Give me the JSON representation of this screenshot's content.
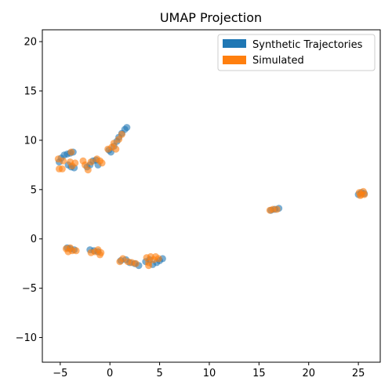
{
  "chart_data": {
    "type": "scatter",
    "title": "UMAP Projection",
    "xlabel": "",
    "ylabel": "",
    "xlim": [
      -6.8,
      27.2
    ],
    "ylim": [
      -12.5,
      21.2
    ],
    "xticks": [
      -5,
      0,
      5,
      10,
      15,
      20,
      25
    ],
    "yticks": [
      -10,
      -5,
      0,
      5,
      10,
      15,
      20
    ],
    "xtick_labels": [
      "−5",
      "0",
      "5",
      "10",
      "15",
      "20",
      "25"
    ],
    "ytick_labels": [
      "−10",
      "−5",
      "0",
      "5",
      "10",
      "15",
      "20"
    ],
    "grid": false,
    "legend_position": "top-right",
    "series": [
      {
        "name": "Synthetic Trajectories",
        "color": "#1f77b4",
        "points": [
          [
            -5.1,
            7.8
          ],
          [
            -4.9,
            8.2
          ],
          [
            -4.6,
            8.5
          ],
          [
            -4.3,
            8.6
          ],
          [
            -4.0,
            8.7
          ],
          [
            -3.7,
            8.8
          ],
          [
            -4.2,
            7.5
          ],
          [
            -3.9,
            7.3
          ],
          [
            -3.6,
            7.2
          ],
          [
            -2.3,
            7.3
          ],
          [
            -2.0,
            7.5
          ],
          [
            -1.7,
            7.9
          ],
          [
            -1.4,
            8.0
          ],
          [
            -1.2,
            7.5
          ],
          [
            -0.1,
            9.0
          ],
          [
            0.1,
            8.8
          ],
          [
            0.4,
            9.4
          ],
          [
            0.7,
            9.9
          ],
          [
            0.9,
            10.3
          ],
          [
            1.2,
            10.7
          ],
          [
            1.5,
            11.1
          ],
          [
            1.7,
            11.3
          ],
          [
            -4.3,
            -0.9
          ],
          [
            -4.0,
            -1.0
          ],
          [
            -3.6,
            -1.1
          ],
          [
            -2.0,
            -1.1
          ],
          [
            -1.6,
            -1.2
          ],
          [
            -1.2,
            -1.3
          ],
          [
            1.1,
            -2.2
          ],
          [
            1.6,
            -2.1
          ],
          [
            2.0,
            -2.4
          ],
          [
            2.5,
            -2.5
          ],
          [
            2.9,
            -2.7
          ],
          [
            3.6,
            -2.3
          ],
          [
            4.0,
            -2.1
          ],
          [
            4.3,
            -2.6
          ],
          [
            4.7,
            -2.4
          ],
          [
            5.0,
            -2.2
          ],
          [
            5.3,
            -2.0
          ],
          [
            16.2,
            2.9
          ],
          [
            16.6,
            3.0
          ],
          [
            17.0,
            3.1
          ],
          [
            25.0,
            4.5
          ],
          [
            25.3,
            4.7
          ],
          [
            25.6,
            4.6
          ]
        ]
      },
      {
        "name": "Simulated",
        "color": "#ff7f0e",
        "points": [
          [
            -5.1,
            7.1
          ],
          [
            -4.8,
            7.1
          ],
          [
            -4.7,
            7.9
          ],
          [
            -5.2,
            8.1
          ],
          [
            -4.0,
            7.8
          ],
          [
            -3.8,
            7.4
          ],
          [
            -3.5,
            7.7
          ],
          [
            -3.9,
            8.8
          ],
          [
            -2.7,
            7.9
          ],
          [
            -2.5,
            7.5
          ],
          [
            -2.2,
            7.0
          ],
          [
            -1.9,
            7.8
          ],
          [
            -1.3,
            8.1
          ],
          [
            -1.0,
            7.9
          ],
          [
            -0.8,
            7.7
          ],
          [
            -0.2,
            9.1
          ],
          [
            0.2,
            9.3
          ],
          [
            0.4,
            9.7
          ],
          [
            0.6,
            9.1
          ],
          [
            0.9,
            10.1
          ],
          [
            1.2,
            10.6
          ],
          [
            -4.4,
            -1.0
          ],
          [
            -4.2,
            -1.3
          ],
          [
            -4.0,
            -0.9
          ],
          [
            -3.8,
            -1.2
          ],
          [
            -3.4,
            -1.2
          ],
          [
            -1.9,
            -1.4
          ],
          [
            -1.5,
            -1.3
          ],
          [
            -1.2,
            -1.1
          ],
          [
            -1.0,
            -1.6
          ],
          [
            -0.9,
            -1.4
          ],
          [
            1.0,
            -2.3
          ],
          [
            1.3,
            -2.0
          ],
          [
            1.8,
            -2.3
          ],
          [
            2.2,
            -2.4
          ],
          [
            2.6,
            -2.5
          ],
          [
            3.7,
            -1.9
          ],
          [
            3.9,
            -2.4
          ],
          [
            4.1,
            -1.8
          ],
          [
            4.4,
            -2.1
          ],
          [
            4.6,
            -1.8
          ],
          [
            4.9,
            -2.0
          ],
          [
            3.9,
            -2.7
          ],
          [
            16.1,
            2.9
          ],
          [
            16.4,
            3.0
          ],
          [
            16.8,
            3.0
          ],
          [
            25.1,
            4.7
          ],
          [
            25.3,
            4.5
          ],
          [
            25.5,
            4.8
          ],
          [
            25.2,
            4.4
          ],
          [
            25.6,
            4.5
          ]
        ]
      }
    ]
  }
}
